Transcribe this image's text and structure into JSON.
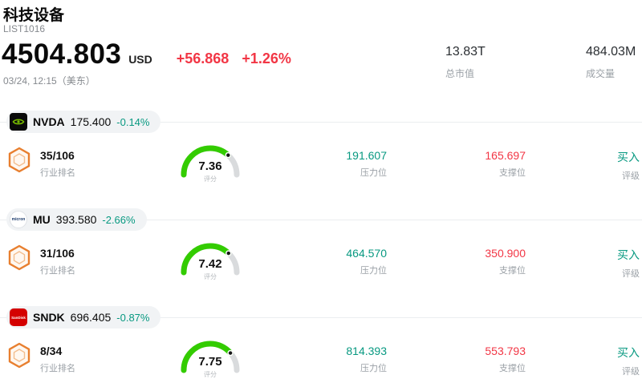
{
  "header": {
    "title": "科技设备",
    "list_id": "LIST1016",
    "price": "4504.803",
    "currency": "USD",
    "change": "+56.868",
    "change_pct": "+1.26%",
    "timestamp": "03/24, 12:15（美东）",
    "market_cap_value": "13.83T",
    "market_cap_label": "总市值",
    "volume_value": "484.03M",
    "volume_label": "成交量"
  },
  "labels": {
    "industry_rank": "行业排名",
    "score": "评分",
    "resistance": "压力位",
    "support": "支撑位",
    "rating": "评级"
  },
  "stocks": [
    {
      "ticker": "NVDA",
      "price": "175.400",
      "change_pct": "-0.14%",
      "rank": "35/106",
      "score": 7.36,
      "resistance": "191.607",
      "support": "165.697",
      "rating": "买入",
      "logo": "nvidia-logo",
      "logo_text": ""
    },
    {
      "ticker": "MU",
      "price": "393.580",
      "change_pct": "-2.66%",
      "rank": "31/106",
      "score": 7.42,
      "resistance": "464.570",
      "support": "350.900",
      "rating": "买入",
      "logo": "micron-logo",
      "logo_text": "micron"
    },
    {
      "ticker": "SNDK",
      "price": "696.405",
      "change_pct": "-0.87%",
      "rank": "8/34",
      "score": 7.75,
      "resistance": "814.393",
      "support": "553.793",
      "rating": "买入",
      "logo": "sandisk-logo",
      "logo_text": "SanDisk"
    }
  ],
  "colors": {
    "up_red": "#f23645",
    "down_green": "#089981",
    "gauge_green": "#33cc00",
    "gauge_track": "#d9dbdd",
    "accent_orange": "#e87f2f",
    "badge_bg": "#f1f3f5"
  }
}
